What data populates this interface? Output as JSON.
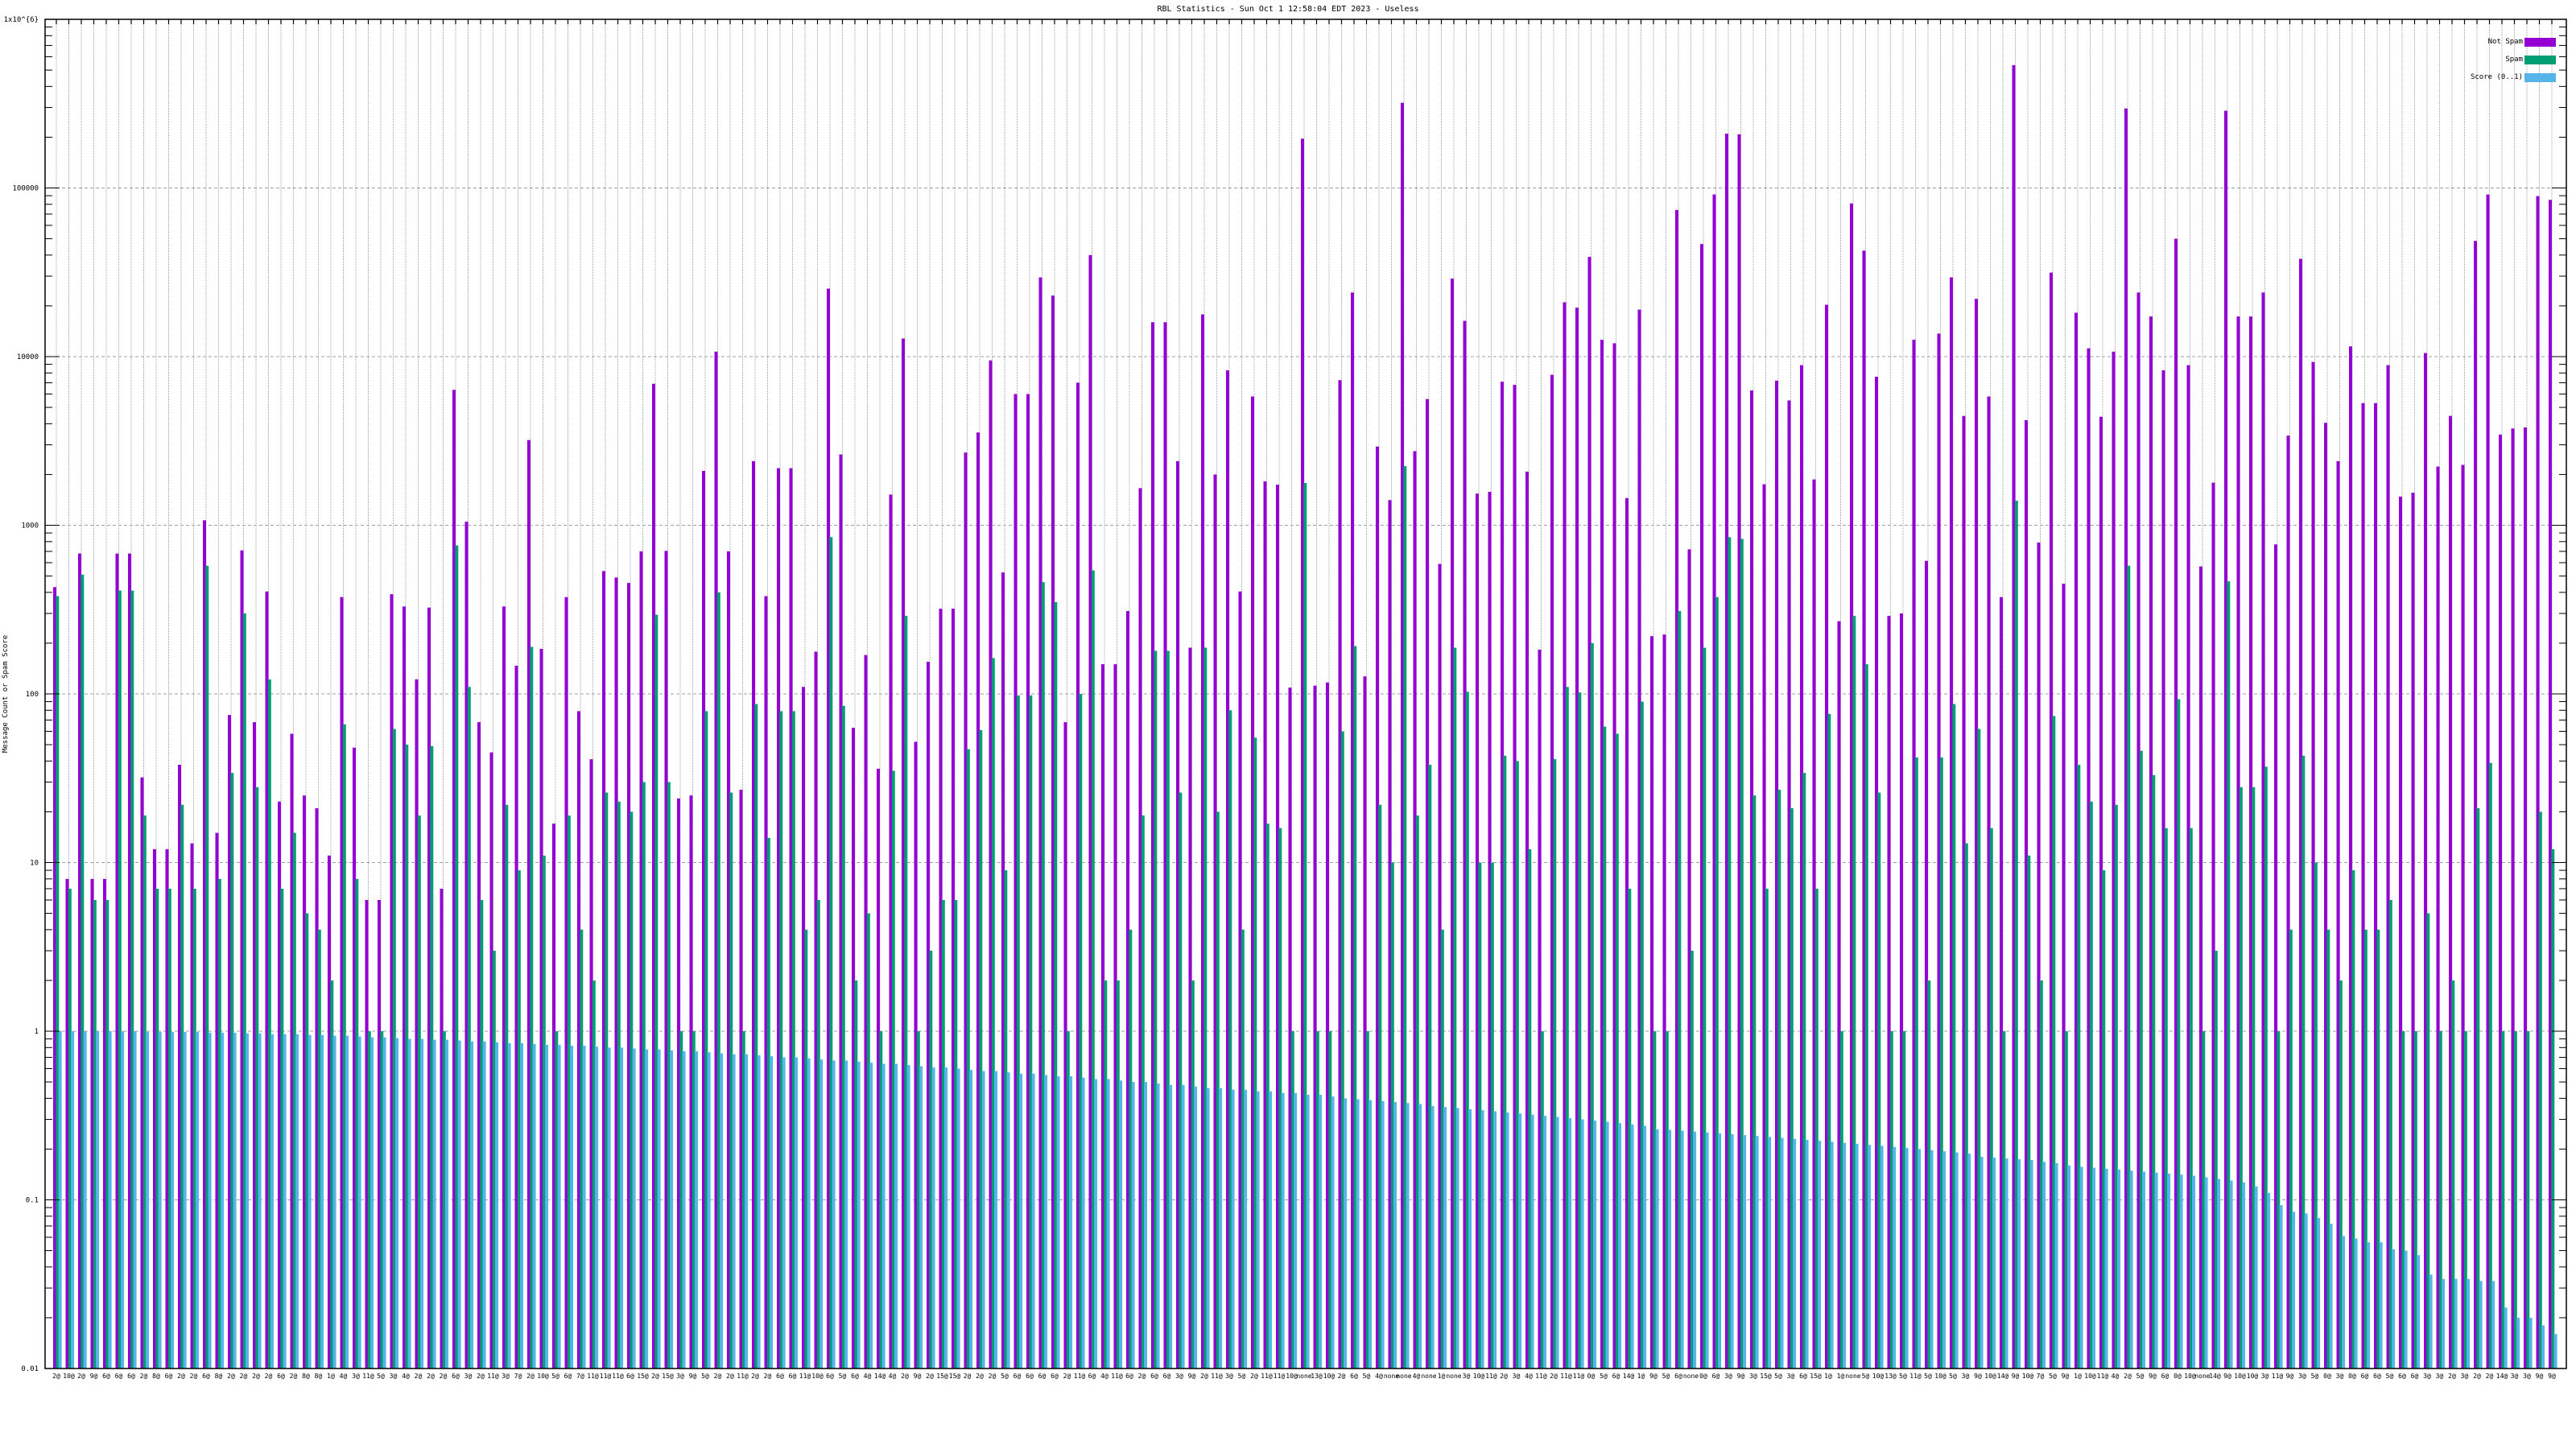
{
  "chart_data": {
    "type": "bar",
    "title": "RBL Statistics - Sun Oct  1 12:58:04 EDT 2023 - Useless",
    "ylabel": "Message Count or Spam Score",
    "xlabel": "",
    "yscale": "log",
    "ylim": [
      0.01,
      1000000
    ],
    "yticks": [
      "0.01",
      "0.1",
      "1",
      "10",
      "100",
      "1000",
      "10000",
      "100000",
      "1x10^{6}"
    ],
    "ytick_values": [
      0.01,
      0.1,
      1,
      10,
      100,
      1000,
      10000,
      100000,
      1000000
    ],
    "grid": true,
    "legend_position": "top-right",
    "colors": {
      "not_spam": "#9400d3",
      "spam": "#009e73",
      "score": "#56b4e9"
    },
    "categories": [
      "2@",
      "10@",
      "2@",
      "9@",
      "6@",
      "6@",
      "6@",
      "2@",
      "8@",
      "6@",
      "2@",
      "2@",
      "6@",
      "8@",
      "2@",
      "2@",
      "2@",
      "2@",
      "6@",
      "2@",
      "8@",
      "8@",
      "1@",
      "4@",
      "3@",
      "11@",
      "5@",
      "3@",
      "4@",
      "2@",
      "2@",
      "2@",
      "6@",
      "3@",
      "2@",
      "11@",
      "3@",
      "7@",
      "2@",
      "10@",
      "5@",
      "6@",
      "7@",
      "11@",
      "11@",
      "11@",
      "6@",
      "15@",
      "2@",
      "15@",
      "3@",
      "9@",
      "5@",
      "2@",
      "2@",
      "11@",
      "2@",
      "2@",
      "6@",
      "6@",
      "11@",
      "10@",
      "6@",
      "5@",
      "6@",
      "4@",
      "14@",
      "4@",
      "2@",
      "9@",
      "2@",
      "15@",
      "15@",
      "2@",
      "2@",
      "2@",
      "5@",
      "6@",
      "6@",
      "6@",
      "6@",
      "2@",
      "11@",
      "6@",
      "4@",
      "11@",
      "6@",
      "2@",
      "6@",
      "6@",
      "3@",
      "9@",
      "2@",
      "11@",
      "3@",
      "5@",
      "2@",
      "11@",
      "11@",
      "10@",
      "none",
      "13@",
      "10@",
      "2@",
      "6@",
      "5@",
      "4@",
      "none",
      "none",
      "4@",
      "none",
      "1@",
      "none",
      "3@",
      "10@",
      "11@",
      "2@",
      "3@",
      "4@",
      "11@",
      "2@",
      "11@",
      "11@",
      "0@",
      "5@",
      "6@",
      "14@",
      "1@",
      "9@",
      "5@",
      "6@",
      "none",
      "0@",
      "6@",
      "3@",
      "9@",
      "3@",
      "15@",
      "5@",
      "3@",
      "6@",
      "15@",
      "1@",
      "1@",
      "none",
      "5@",
      "10@",
      "13@",
      "5@",
      "11@",
      "5@",
      "10@",
      "5@",
      "3@",
      "9@",
      "10@",
      "14@",
      "9@",
      "10@",
      "7@",
      "5@",
      "9@",
      "1@",
      "10@",
      "11@",
      "4@",
      "2@",
      "5@",
      "9@",
      "6@",
      "0@",
      "10@",
      "none",
      "14@",
      "9@",
      "10@",
      "10@",
      "3@",
      "11@",
      "9@",
      "3@",
      "5@",
      "0@",
      "3@",
      "0@",
      "6@",
      "6@",
      "5@",
      "6@",
      "6@",
      "3@",
      "3@",
      "2@",
      "3@",
      "2@",
      "2@",
      "14@",
      "3@",
      "3@",
      "9@",
      "9@"
    ],
    "series": [
      {
        "name": "Not Spam",
        "values": [
          430,
          8,
          680,
          8,
          8,
          680,
          680,
          32,
          12,
          12,
          38,
          13,
          1070,
          15,
          75,
          710,
          68,
          405,
          23,
          58,
          25,
          21,
          11,
          375,
          48,
          6,
          6,
          390,
          330,
          122,
          325,
          7,
          6350,
          1050,
          68,
          45,
          330,
          147,
          3200,
          185,
          17,
          375,
          79,
          41,
          535,
          490,
          455,
          700,
          6900,
          705,
          24,
          25,
          2100,
          10700,
          700,
          27,
          2400,
          380,
          2180,
          2180,
          110,
          178,
          25300,
          2630,
          63,
          170,
          36,
          1520,
          12800,
          52,
          155,
          320,
          320,
          2700,
          3550,
          9500,
          525,
          6000,
          6000,
          29500,
          23000,
          68,
          7000,
          40000,
          150,
          150,
          310,
          1660,
          16000,
          16000,
          2400,
          188,
          17800,
          2000,
          8300,
          405,
          5800,
          1820,
          1740,
          109,
          196000,
          112,
          117,
          7250,
          24000,
          127,
          2930,
          1410,
          320000,
          2750,
          5600,
          590,
          29000,
          16300,
          1540,
          1580,
          7100,
          6800,
          2080,
          183,
          7800,
          21000,
          19500,
          39000,
          12600,
          12000,
          1450,
          19000,
          220,
          225,
          74000,
          720,
          46500,
          91500,
          210000,
          208000,
          6300,
          1750,
          7200,
          5500,
          8900,
          1870,
          20300,
          270,
          81000,
          42500,
          7600,
          290,
          300,
          12600,
          615,
          13700,
          29500,
          4450,
          22000,
          5800,
          375,
          535000,
          4200,
          790,
          31500,
          450,
          18200,
          11200,
          4400,
          10700,
          296000,
          24000,
          17300,
          8300,
          50000,
          8900,
          570,
          1790,
          287000,
          17300,
          17300,
          24000,
          770,
          3400,
          38000,
          9300,
          4050,
          2400,
          11500,
          5300,
          5300,
          8900,
          1480,
          1560,
          10500,
          2230,
          4450,
          2280,
          48500,
          91500,
          3450,
          3750,
          3800,
          89500,
          85000
        ]
      },
      {
        "name": "Spam",
        "values": [
          380,
          7,
          510,
          6,
          6,
          410,
          410,
          19,
          7,
          7,
          22,
          7,
          575,
          8,
          34,
          300,
          28,
          122,
          7,
          15,
          5,
          4,
          2,
          66,
          8,
          1,
          1,
          62,
          50,
          19,
          49,
          1,
          760,
          110,
          6,
          3,
          22,
          9,
          190,
          11,
          1,
          19,
          4,
          2,
          26,
          23,
          20,
          30,
          295,
          30,
          1,
          1,
          79,
          400,
          26,
          1,
          87,
          14,
          79,
          79,
          4,
          6,
          850,
          85,
          2,
          5,
          1,
          35,
          290,
          1,
          3,
          6,
          6,
          47,
          61,
          163,
          9,
          98,
          98,
          460,
          350,
          1,
          100,
          540,
          2,
          2,
          4,
          19,
          180,
          180,
          26,
          2,
          188,
          20,
          80,
          4,
          55,
          17,
          16,
          1,
          1780,
          1,
          1,
          60,
          192,
          1,
          22,
          10,
          2240,
          19,
          38,
          4,
          188,
          103,
          10,
          10,
          43,
          40,
          12,
          1,
          41,
          110,
          102,
          200,
          64,
          58,
          7,
          90,
          1,
          1,
          310,
          3,
          188,
          375,
          850,
          830,
          25,
          7,
          27,
          21,
          34,
          7,
          76,
          1,
          290,
          150,
          26,
          1,
          1,
          42,
          2,
          42,
          87,
          13,
          62,
          16,
          1,
          1400,
          11,
          2,
          74,
          1,
          38,
          23,
          9,
          22,
          575,
          46,
          33,
          16,
          93,
          16,
          1,
          3,
          465,
          28,
          28,
          37,
          1,
          4,
          43,
          10,
          4,
          2,
          9,
          4,
          4,
          6,
          1,
          1,
          5,
          1,
          2,
          1,
          21,
          39,
          1,
          1,
          1,
          20,
          12
        ]
      },
      {
        "name": "Score (0..1)",
        "values": [
          1,
          1,
          1,
          1,
          1,
          1,
          1,
          0.99,
          0.99,
          0.99,
          0.99,
          0.99,
          0.98,
          0.98,
          0.98,
          0.97,
          0.97,
          0.96,
          0.96,
          0.96,
          0.95,
          0.95,
          0.94,
          0.94,
          0.93,
          0.92,
          0.92,
          0.91,
          0.9,
          0.9,
          0.89,
          0.89,
          0.88,
          0.87,
          0.87,
          0.86,
          0.85,
          0.85,
          0.84,
          0.83,
          0.83,
          0.82,
          0.82,
          0.81,
          0.8,
          0.8,
          0.79,
          0.78,
          0.78,
          0.77,
          0.76,
          0.76,
          0.75,
          0.74,
          0.73,
          0.73,
          0.72,
          0.71,
          0.7,
          0.7,
          0.69,
          0.68,
          0.67,
          0.67,
          0.66,
          0.65,
          0.64,
          0.64,
          0.63,
          0.62,
          0.61,
          0.61,
          0.6,
          0.59,
          0.58,
          0.58,
          0.57,
          0.56,
          0.56,
          0.55,
          0.54,
          0.54,
          0.53,
          0.52,
          0.52,
          0.51,
          0.5,
          0.5,
          0.49,
          0.48,
          0.48,
          0.47,
          0.46,
          0.46,
          0.45,
          0.45,
          0.44,
          0.44,
          0.43,
          0.43,
          0.42,
          0.42,
          0.41,
          0.4,
          0.395,
          0.39,
          0.385,
          0.38,
          0.375,
          0.37,
          0.36,
          0.355,
          0.35,
          0.345,
          0.34,
          0.335,
          0.33,
          0.325,
          0.32,
          0.315,
          0.31,
          0.305,
          0.3,
          0.295,
          0.29,
          0.285,
          0.28,
          0.275,
          0.262,
          0.26,
          0.257,
          0.254,
          0.251,
          0.248,
          0.245,
          0.242,
          0.239,
          0.236,
          0.233,
          0.23,
          0.227,
          0.224,
          0.221,
          0.218,
          0.215,
          0.212,
          0.209,
          0.206,
          0.203,
          0.2,
          0.197,
          0.194,
          0.191,
          0.188,
          0.18,
          0.178,
          0.176,
          0.174,
          0.172,
          0.168,
          0.165,
          0.16,
          0.157,
          0.155,
          0.153,
          0.151,
          0.149,
          0.147,
          0.145,
          0.143,
          0.141,
          0.139,
          0.136,
          0.133,
          0.13,
          0.127,
          0.12,
          0.11,
          0.093,
          0.085,
          0.083,
          0.078,
          0.072,
          0.061,
          0.059,
          0.056,
          0.056,
          0.051,
          0.05,
          0.047,
          0.036,
          0.034,
          0.034,
          0.034,
          0.033,
          0.033,
          0.023,
          0.02,
          0.02,
          0.018,
          0.016
        ]
      }
    ]
  }
}
